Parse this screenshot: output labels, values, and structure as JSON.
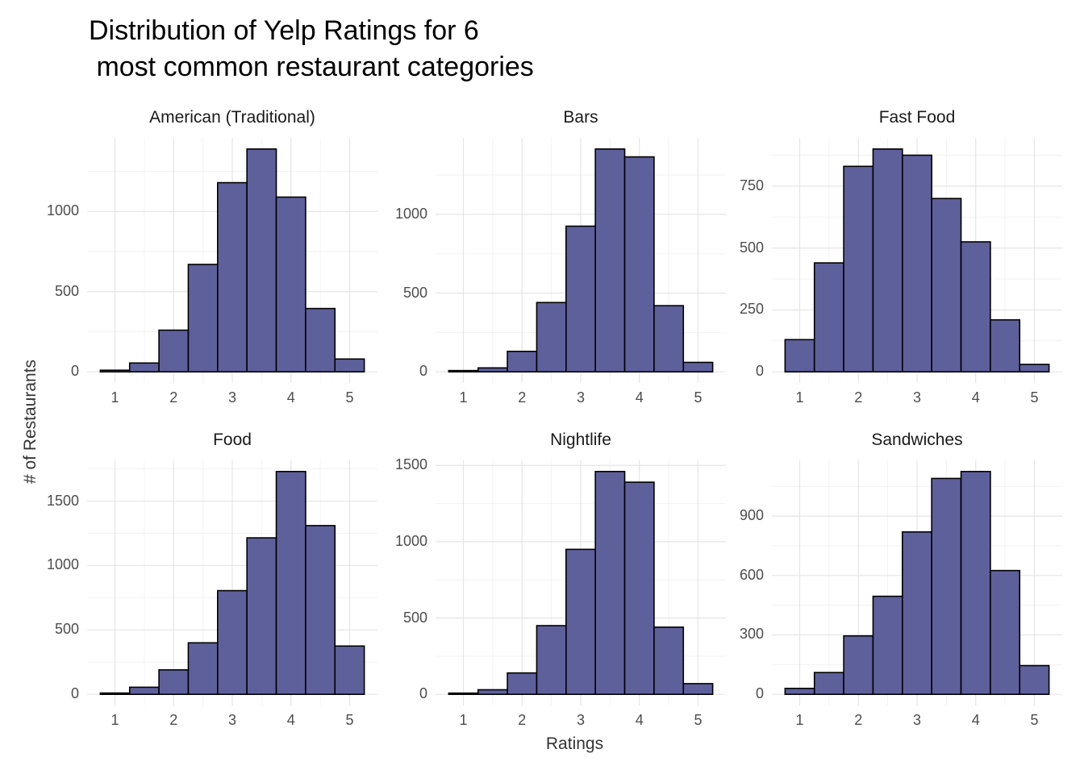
{
  "header": {
    "title": "Distribution of Yelp Ratings for 6\n most common restaurant categories"
  },
  "chart_data": {
    "type": "bar",
    "subtype": "faceted-histogram",
    "title": "Distribution of Yelp Ratings for 6\n most common restaurant categories",
    "xlabel": "Ratings",
    "ylabel": "# of Restaurants",
    "x_ticks": [
      1,
      2,
      3,
      4,
      5
    ],
    "xlim": [
      0.525,
      5.475
    ],
    "bin_centers": [
      1,
      1.5,
      2,
      2.5,
      3,
      3.5,
      4,
      4.5,
      5
    ],
    "bin_width": 0.5,
    "y_expansion": 0.05,
    "grid": "on",
    "legend": "none",
    "colors": {
      "bar_fill": "#5e609c",
      "bar_stroke": "#000000",
      "grid_major": "#e5e5e5",
      "grid_minor": "#f2f2f2",
      "tick_text": "#4d4d4d",
      "axis_title_text": "#333333",
      "title_text": "#000000"
    },
    "facets": [
      {
        "label": "American (Traditional)",
        "y_ticks": [
          0,
          500,
          1000
        ],
        "y_major_step": 500,
        "values": [
          10,
          55,
          260,
          670,
          1180,
          1390,
          1090,
          395,
          80
        ]
      },
      {
        "label": "Bars",
        "y_ticks": [
          0,
          500,
          1000
        ],
        "y_major_step": 500,
        "values": [
          8,
          25,
          130,
          440,
          925,
          1415,
          1365,
          420,
          60
        ]
      },
      {
        "label": "Fast Food",
        "y_ticks": [
          0,
          250,
          500,
          750
        ],
        "y_major_step": 250,
        "values": [
          130,
          440,
          830,
          900,
          875,
          700,
          525,
          210,
          30
        ]
      },
      {
        "label": "Food",
        "y_ticks": [
          0,
          500,
          1000,
          1500
        ],
        "y_major_step": 500,
        "values": [
          10,
          55,
          190,
          400,
          805,
          1215,
          1730,
          1310,
          375
        ]
      },
      {
        "label": "Nightlife",
        "y_ticks": [
          0,
          500,
          1000,
          1500
        ],
        "y_major_step": 500,
        "values": [
          8,
          30,
          140,
          450,
          950,
          1460,
          1390,
          440,
          70
        ]
      },
      {
        "label": "Sandwiches",
        "y_ticks": [
          0,
          300,
          600,
          900
        ],
        "y_major_step": 300,
        "values": [
          30,
          110,
          295,
          495,
          820,
          1090,
          1125,
          625,
          145
        ]
      }
    ]
  }
}
